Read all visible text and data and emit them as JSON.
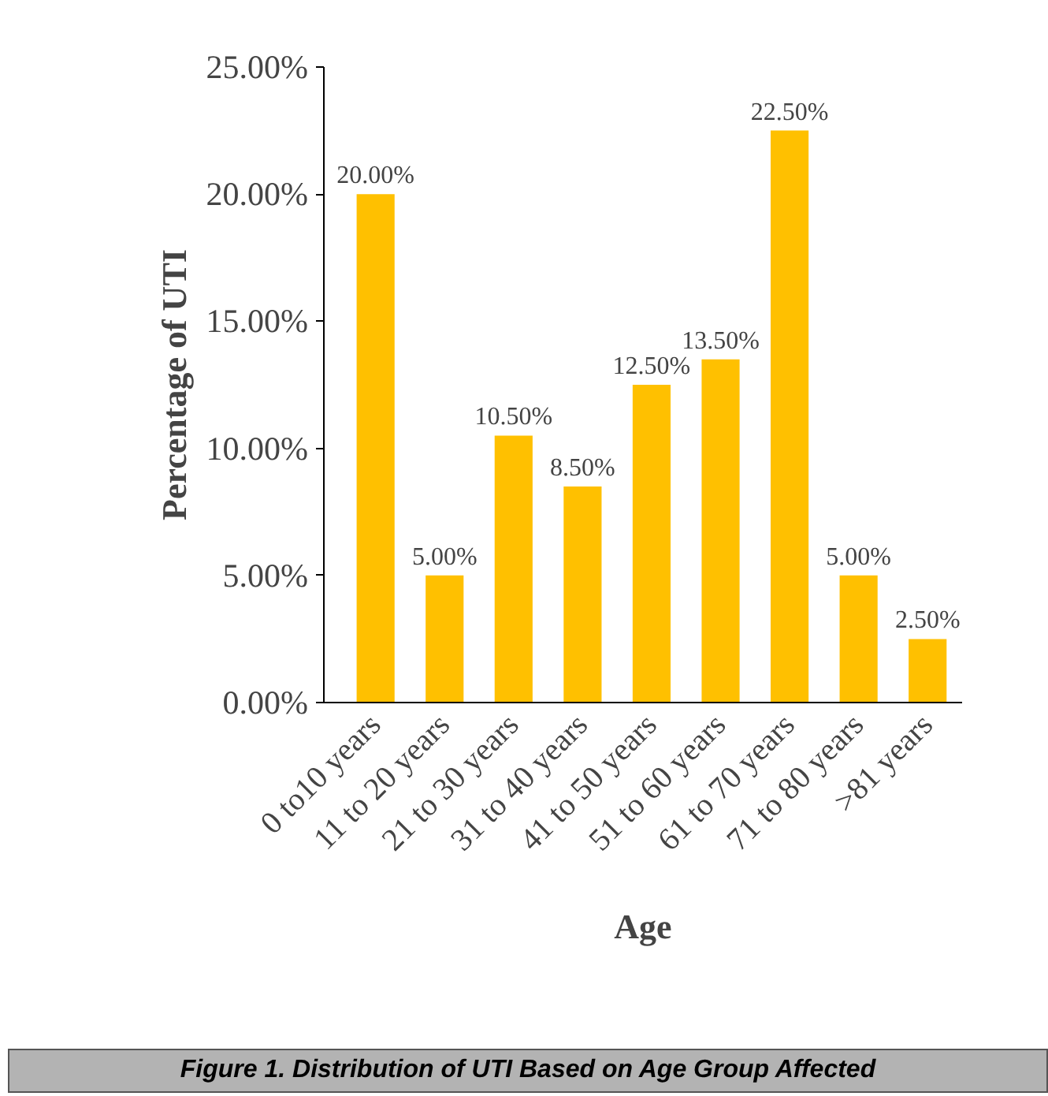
{
  "chart_data": {
    "type": "bar",
    "xlabel": "Age",
    "ylabel": "Percentage of UTI",
    "categories": [
      "0 to10 years",
      "11 to 20 years",
      "21 to 30 years",
      "31 to 40 years",
      "41 to 50 years",
      "51 to 60 years",
      "61 to 70 years",
      "71 to 80 years",
      ">81 years"
    ],
    "values": [
      20,
      5,
      10.5,
      8.5,
      12.5,
      13.5,
      22.5,
      5,
      2.5
    ],
    "value_labels": [
      "20.00%",
      "5.00%",
      "10.50%",
      "8.50%",
      "12.50%",
      "13.50%",
      "22.50%",
      "5.00%",
      "2.50%"
    ],
    "color": "#ffc000",
    "ylim": [
      0,
      25
    ],
    "yticks": [
      {
        "value": 0,
        "label": "0.00%"
      },
      {
        "value": 5,
        "label": "5.00%"
      },
      {
        "value": 10,
        "label": "10.00%"
      },
      {
        "value": 15,
        "label": "15.00%"
      },
      {
        "value": 20,
        "label": "20.00%"
      },
      {
        "value": 25,
        "label": "25.00%"
      }
    ],
    "grid": false,
    "annotations": [
      "Figure 1. Distribution of UTI Based on Age Group Affected"
    ]
  }
}
